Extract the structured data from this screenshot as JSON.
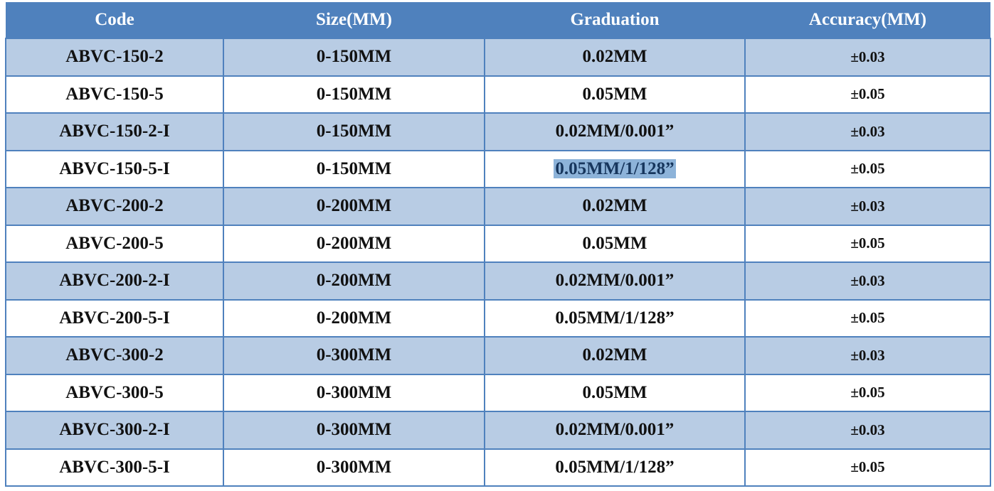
{
  "table": {
    "headers": [
      "Code",
      "Size(MM)",
      "Graduation",
      "Accuracy(MM)"
    ],
    "rows": [
      [
        "ABVC-150-2",
        "0-150MM",
        "0.02MM",
        "±0.03"
      ],
      [
        "ABVC-150-5",
        "0-150MM",
        "0.05MM",
        "±0.05"
      ],
      [
        "ABVC-150-2-I",
        "0-150MM",
        "0.02MM/0.001”",
        "±0.03"
      ],
      [
        "ABVC-150-5-I",
        "0-150MM",
        "0.05MM/1/128”",
        "±0.05"
      ],
      [
        "ABVC-200-2",
        "0-200MM",
        "0.02MM",
        "±0.03"
      ],
      [
        "ABVC-200-5",
        "0-200MM",
        "0.05MM",
        "±0.05"
      ],
      [
        "ABVC-200-2-I",
        "0-200MM",
        "0.02MM/0.001”",
        "±0.03"
      ],
      [
        "ABVC-200-5-I",
        "0-200MM",
        "0.05MM/1/128”",
        "±0.05"
      ],
      [
        "ABVC-300-2",
        "0-300MM",
        "0.02MM",
        "±0.03"
      ],
      [
        "ABVC-300-5",
        "0-300MM",
        "0.05MM",
        "±0.05"
      ],
      [
        "ABVC-300-2-I",
        "0-300MM",
        "0.02MM/0.001”",
        "±0.03"
      ],
      [
        "ABVC-300-5-I",
        "0-300MM",
        "0.05MM/1/128”",
        "±0.05"
      ]
    ],
    "selected_cell": {
      "row": 3,
      "col": 2
    }
  },
  "colors": {
    "header": "#4f81bd",
    "alt_row": "#b8cce4",
    "border": "#4f81bd",
    "selection": "#8db3d9"
  }
}
